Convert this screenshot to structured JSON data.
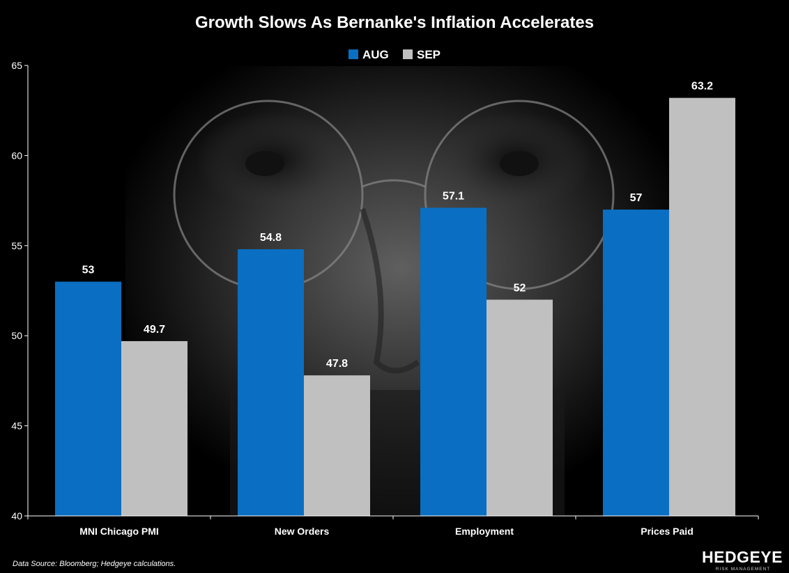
{
  "chart_data": {
    "type": "bar",
    "title": "Growth Slows As Bernanke's Inflation Accelerates",
    "categories": [
      "MNI Chicago PMI",
      "New Orders",
      "Employment",
      "Prices Paid"
    ],
    "series": [
      {
        "name": "AUG",
        "values": [
          53,
          54.8,
          57.1,
          57
        ],
        "labels": [
          "53",
          "54.8",
          "57.1",
          "57"
        ],
        "color": "#0A6FC2"
      },
      {
        "name": "SEP",
        "values": [
          49.7,
          47.8,
          52,
          63.2
        ],
        "labels": [
          "49.7",
          "47.8",
          "52",
          "63.2"
        ],
        "color": "#C0C0C0"
      }
    ],
    "ylim": [
      40,
      65
    ],
    "yticks": [
      "40",
      "45",
      "50",
      "55",
      "60",
      "65"
    ],
    "legend_position": "top-center",
    "grid": false,
    "xlabel": "",
    "ylabel": ""
  },
  "footer": {
    "source": "Data Source:  Bloomberg; Hedgeye calculations."
  },
  "logo": {
    "name": "HEDGEYE",
    "tagline": "RISK MANAGEMENT"
  },
  "colors": {
    "background": "#000000",
    "axis": "#FFFFFF",
    "text": "#FFFFFF"
  },
  "icons": {
    "background_photo": "face-photo-icon"
  }
}
